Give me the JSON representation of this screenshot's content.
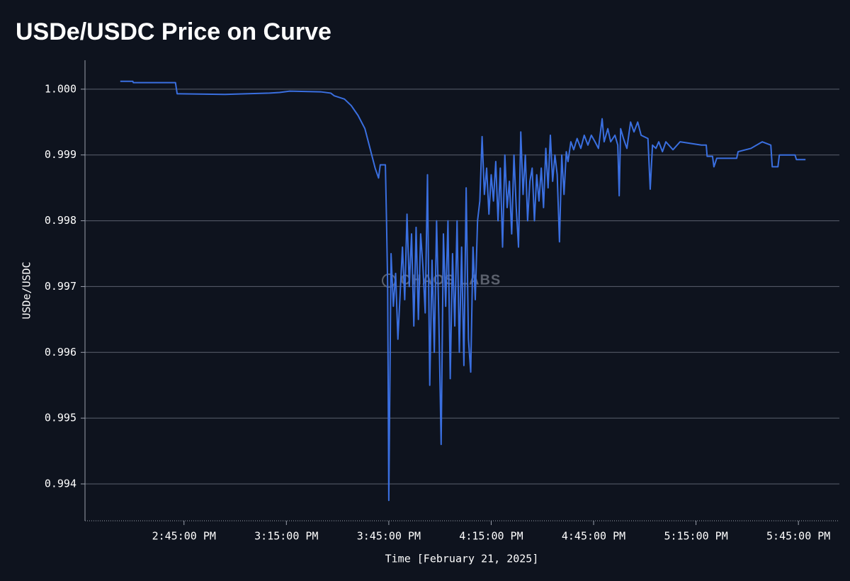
{
  "chart_data": {
    "type": "line",
    "title": "USDe/USDC Price on Curve",
    "xlabel": "Time [February 21, 2025]",
    "ylabel": "USDe/USDC",
    "watermark": "CHAOS LABS",
    "color": "#3a6fe0",
    "grid": true,
    "xlim": [
      "2:16:00 PM",
      "5:57:00 PM"
    ],
    "xticks": [
      "2:45:00 PM",
      "3:15:00 PM",
      "3:45:00 PM",
      "4:15:00 PM",
      "4:45:00 PM",
      "5:15:00 PM",
      "5:45:00 PM"
    ],
    "ylim": [
      0.99344,
      1.00044
    ],
    "yticks": [
      0.994,
      0.995,
      0.996,
      0.997,
      0.998,
      0.999,
      {
        "value": 1,
        "label": "1.000"
      }
    ],
    "x": [
      "2:26:20 PM",
      "2:30:00 PM",
      "2:30:10 PM",
      "2:42:30 PM",
      "2:43:00 PM",
      "2:57:00 PM",
      "3:03:00 PM",
      "3:10:00 PM",
      "3:13:00 PM",
      "3:16:00 PM",
      "3:25:00 PM",
      "3:28:00 PM",
      "3:29:00 PM",
      "3:32:00 PM",
      "3:34:00 PM",
      "3:36:00 PM",
      "3:38:00 PM",
      "3:39:00 PM",
      "3:40:00 PM",
      "3:41:00 PM",
      "3:42:00 PM",
      "3:42:30 PM",
      "3:44:00 PM",
      "3:44:20 PM",
      "3:44:40 PM",
      "3:45:00 PM",
      "3:45:40 PM",
      "3:46:20 PM",
      "3:47:00 PM",
      "3:47:40 PM",
      "3:48:20 PM",
      "3:49:00 PM",
      "3:49:40 PM",
      "3:50:20 PM",
      "3:51:00 PM",
      "3:51:40 PM",
      "3:52:20 PM",
      "3:53:00 PM",
      "3:53:40 PM",
      "3:54:20 PM",
      "3:55:00 PM",
      "3:55:40 PM",
      "3:56:20 PM",
      "3:57:00 PM",
      "3:57:40 PM",
      "3:58:20 PM",
      "3:59:00 PM",
      "3:59:40 PM",
      "4:00:20 PM",
      "4:01:00 PM",
      "4:01:40 PM",
      "4:02:20 PM",
      "4:03:00 PM",
      "4:03:40 PM",
      "4:04:20 PM",
      "4:05:00 PM",
      "4:05:40 PM",
      "4:06:20 PM",
      "4:07:00 PM",
      "4:07:40 PM",
      "4:08:20 PM",
      "4:09:00 PM",
      "4:09:40 PM",
      "4:10:20 PM",
      "4:11:00 PM",
      "4:11:40 PM",
      "4:12:20 PM",
      "4:13:00 PM",
      "4:13:40 PM",
      "4:14:20 PM",
      "4:15:00 PM",
      "4:15:40 PM",
      "4:16:20 PM",
      "4:17:00 PM",
      "4:17:40 PM",
      "4:18:20 PM",
      "4:19:00 PM",
      "4:19:40 PM",
      "4:20:20 PM",
      "4:21:00 PM",
      "4:21:40 PM",
      "4:22:20 PM",
      "4:23:00 PM",
      "4:23:40 PM",
      "4:24:20 PM",
      "4:25:00 PM",
      "4:25:40 PM",
      "4:26:20 PM",
      "4:27:00 PM",
      "4:27:40 PM",
      "4:28:20 PM",
      "4:29:00 PM",
      "4:29:40 PM",
      "4:30:20 PM",
      "4:31:00 PM",
      "4:31:40 PM",
      "4:32:20 PM",
      "4:33:00 PM",
      "4:33:40 PM",
      "4:34:20 PM",
      "4:35:00 PM",
      "4:35:40 PM",
      "4:36:20 PM",
      "4:37:00 PM",
      "4:37:30 PM",
      "4:38:20 PM",
      "4:39:10 PM",
      "4:40:10 PM",
      "4:41:15 PM",
      "4:42:15 PM",
      "4:43:20 PM",
      "4:44:20 PM",
      "4:45:25 PM",
      "4:46:25 PM",
      "4:47:30 PM",
      "4:48:05 PM",
      "4:49:10 PM",
      "4:50:00 PM",
      "4:51:15 PM",
      "4:52:05 PM",
      "4:52:30 PM",
      "4:52:55 PM",
      "4:53:45 PM",
      "4:54:45 PM",
      "4:55:50 PM",
      "4:56:50 PM",
      "4:57:55 PM",
      "4:58:55 PM",
      "5:00:55 PM",
      "5:01:35 PM",
      "5:02:15 PM",
      "5:03:15 PM",
      "5:04:05 PM",
      "5:05:10 PM",
      "5:06:10 PM",
      "5:08:15 PM",
      "5:10:20 PM",
      "5:16:35 PM",
      "5:18:00 PM",
      "5:18:15 PM",
      "5:19:50 PM",
      "5:20:15 PM",
      "5:21:05 PM",
      "5:26:55 PM",
      "5:27:20 PM",
      "5:31:05 PM",
      "5:34:25 PM",
      "5:36:55 PM",
      "5:37:20 PM",
      "5:39:00 PM",
      "5:39:25 PM",
      "5:44:00 PM",
      "5:44:25 PM",
      "5:47:05 PM"
    ],
    "values": [
      1.00012,
      1.00012,
      1.0001,
      1.0001,
      0.99993,
      0.99992,
      0.99993,
      0.99994,
      0.99995,
      0.99997,
      0.99996,
      0.99994,
      0.9999,
      0.99985,
      0.99975,
      0.9996,
      0.9994,
      0.9992,
      0.999,
      0.9988,
      0.99865,
      0.99885,
      0.99885,
      0.998,
      0.997,
      0.99375,
      0.9975,
      0.9967,
      0.9972,
      0.9962,
      0.9969,
      0.9976,
      0.9968,
      0.9981,
      0.997,
      0.9978,
      0.9964,
      0.9979,
      0.9965,
      0.9978,
      0.9973,
      0.9966,
      0.9987,
      0.9955,
      0.9974,
      0.996,
      0.998,
      0.9965,
      0.9946,
      0.9978,
      0.9967,
      0.998,
      0.9956,
      0.9975,
      0.9964,
      0.998,
      0.996,
      0.9976,
      0.9958,
      0.9985,
      0.9962,
      0.9957,
      0.9976,
      0.9968,
      0.998,
      0.9983,
      0.99928,
      0.9984,
      0.9988,
      0.9981,
      0.9987,
      0.9983,
      0.9989,
      0.998,
      0.9988,
      0.9976,
      0.999,
      0.9982,
      0.9986,
      0.9978,
      0.999,
      0.9982,
      0.9976,
      0.99935,
      0.9984,
      0.999,
      0.998,
      0.9986,
      0.9988,
      0.998,
      0.9987,
      0.9983,
      0.9988,
      0.9982,
      0.9991,
      0.9985,
      0.9993,
      0.9986,
      0.999,
      0.9987,
      0.99768,
      0.999,
      0.9984,
      0.99905,
      0.9989,
      0.9992,
      0.99908,
      0.99925,
      0.9991,
      0.9993,
      0.99915,
      0.9993,
      0.9992,
      0.9991,
      0.99955,
      0.9992,
      0.9994,
      0.9992,
      0.9993,
      0.99915,
      0.99838,
      0.9994,
      0.99925,
      0.9991,
      0.9995,
      0.99935,
      0.9995,
      0.9993,
      0.99925,
      0.99848,
      0.99915,
      0.9991,
      0.9992,
      0.99905,
      0.9992,
      0.99908,
      0.9992,
      0.99915,
      0.99915,
      0.99898,
      0.99898,
      0.99882,
      0.99895,
      0.99895,
      0.99905,
      0.9991,
      0.9992,
      0.99915,
      0.99882,
      0.99882,
      0.999,
      0.999,
      0.99893,
      0.99893
    ]
  }
}
